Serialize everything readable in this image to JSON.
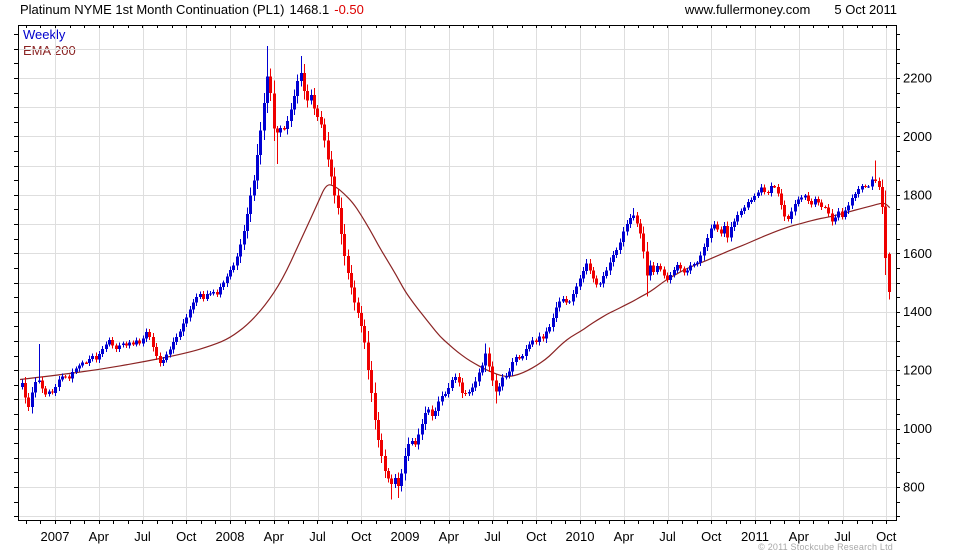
{
  "header": {
    "instrument": "Platinum NYME 1st Month Continuation (PL1)",
    "last": "1468.1",
    "change": "-0.50",
    "website": "www.fullermoney.com",
    "date": "5 Oct 2011"
  },
  "legend": {
    "weekly": "Weekly",
    "ema": "EMA 200"
  },
  "footer": {
    "copyright": "© 2011 Stockcube Research Ltd"
  },
  "colors": {
    "up": "#0000d2",
    "down": "#ee0000",
    "ema": "#8b2424",
    "grid": "#dedede",
    "frame": "#000000",
    "change_text": "#dd0000",
    "copyright_text": "#a9a9a9"
  },
  "chart_data": {
    "type": "candlestick",
    "title": "Platinum NYME 1st Month Continuation (PL1)",
    "frequency": "Weekly",
    "overlay": "EMA 200",
    "last_price": 1468.1,
    "change": -0.5,
    "as_of": "5 Oct 2011",
    "x_domain": [
      2006.79,
      2011.792
    ],
    "y_domain": [
      687,
      2381
    ],
    "y_grid_step": 100,
    "y_tick_step": 50,
    "y_labels": [
      800,
      1000,
      1200,
      1400,
      1600,
      1800,
      2000,
      2200
    ],
    "x_ticks": [
      [
        2007.0,
        "2007"
      ],
      [
        2007.25,
        "Apr"
      ],
      [
        2007.5,
        "Jul"
      ],
      [
        2007.75,
        "Oct"
      ],
      [
        2008.0,
        "2008"
      ],
      [
        2008.25,
        "Apr"
      ],
      [
        2008.5,
        "Jul"
      ],
      [
        2008.75,
        "Oct"
      ],
      [
        2009.0,
        "2009"
      ],
      [
        2009.25,
        "Apr"
      ],
      [
        2009.5,
        "Jul"
      ],
      [
        2009.75,
        "Oct"
      ],
      [
        2010.0,
        "2010"
      ],
      [
        2010.25,
        "Apr"
      ],
      [
        2010.5,
        "Jul"
      ],
      [
        2010.75,
        "Oct"
      ],
      [
        2011.0,
        "2011"
      ],
      [
        2011.25,
        "Apr"
      ],
      [
        2011.5,
        "Jul"
      ],
      [
        2011.75,
        "Oct"
      ]
    ],
    "price_anchors": [
      [
        2006.81,
        1160
      ],
      [
        2006.83,
        1105
      ],
      [
        2006.85,
        1070
      ],
      [
        2006.87,
        1125
      ],
      [
        2006.9,
        1180
      ],
      [
        2006.92,
        1140
      ],
      [
        2006.94,
        1110
      ],
      [
        2006.96,
        1130
      ],
      [
        2006.98,
        1115
      ],
      [
        2007.0,
        1140
      ],
      [
        2007.02,
        1165
      ],
      [
        2007.04,
        1180
      ],
      [
        2007.08,
        1170
      ],
      [
        2007.1,
        1195
      ],
      [
        2007.13,
        1215
      ],
      [
        2007.15,
        1230
      ],
      [
        2007.17,
        1220
      ],
      [
        2007.19,
        1240
      ],
      [
        2007.21,
        1255
      ],
      [
        2007.23,
        1235
      ],
      [
        2007.25,
        1250
      ],
      [
        2007.27,
        1270
      ],
      [
        2007.29,
        1290
      ],
      [
        2007.31,
        1305
      ],
      [
        2007.33,
        1285
      ],
      [
        2007.35,
        1270
      ],
      [
        2007.38,
        1290
      ],
      [
        2007.4,
        1280
      ],
      [
        2007.42,
        1295
      ],
      [
        2007.44,
        1285
      ],
      [
        2007.46,
        1300
      ],
      [
        2007.48,
        1290
      ],
      [
        2007.5,
        1310
      ],
      [
        2007.52,
        1330
      ],
      [
        2007.54,
        1310
      ],
      [
        2007.56,
        1280
      ],
      [
        2007.58,
        1245
      ],
      [
        2007.6,
        1225
      ],
      [
        2007.63,
        1250
      ],
      [
        2007.65,
        1270
      ],
      [
        2007.67,
        1290
      ],
      [
        2007.69,
        1310
      ],
      [
        2007.71,
        1330
      ],
      [
        2007.73,
        1355
      ],
      [
        2007.75,
        1380
      ],
      [
        2007.77,
        1410
      ],
      [
        2007.79,
        1435
      ],
      [
        2007.81,
        1455
      ],
      [
        2007.83,
        1465
      ],
      [
        2007.85,
        1445
      ],
      [
        2007.87,
        1460
      ],
      [
        2007.9,
        1475
      ],
      [
        2007.92,
        1460
      ],
      [
        2007.94,
        1480
      ],
      [
        2007.96,
        1500
      ],
      [
        2007.98,
        1520
      ],
      [
        2008.0,
        1545
      ],
      [
        2008.02,
        1560
      ],
      [
        2008.04,
        1590
      ],
      [
        2008.06,
        1640
      ],
      [
        2008.08,
        1690
      ],
      [
        2008.1,
        1750
      ],
      [
        2008.12,
        1810
      ],
      [
        2008.14,
        1870
      ],
      [
        2008.16,
        1960
      ],
      [
        2008.18,
        2060
      ],
      [
        2008.2,
        2160
      ],
      [
        2008.22,
        2230
      ],
      [
        2008.24,
        2080
      ],
      [
        2008.26,
        1990
      ],
      [
        2008.28,
        2050
      ],
      [
        2008.3,
        2020
      ],
      [
        2008.32,
        2040
      ],
      [
        2008.34,
        2080
      ],
      [
        2008.36,
        2130
      ],
      [
        2008.38,
        2170
      ],
      [
        2008.4,
        2220
      ],
      [
        2008.42,
        2170
      ],
      [
        2008.44,
        2120
      ],
      [
        2008.46,
        2140
      ],
      [
        2008.48,
        2090
      ],
      [
        2008.5,
        2060
      ],
      [
        2008.52,
        2030
      ],
      [
        2008.54,
        1990
      ],
      [
        2008.56,
        1920
      ],
      [
        2008.58,
        1850
      ],
      [
        2008.6,
        1790
      ],
      [
        2008.62,
        1730
      ],
      [
        2008.64,
        1650
      ],
      [
        2008.66,
        1570
      ],
      [
        2008.68,
        1510
      ],
      [
        2008.7,
        1450
      ],
      [
        2008.72,
        1420
      ],
      [
        2008.74,
        1370
      ],
      [
        2008.76,
        1320
      ],
      [
        2008.78,
        1240
      ],
      [
        2008.8,
        1150
      ],
      [
        2008.82,
        1060
      ],
      [
        2008.84,
        985
      ],
      [
        2008.86,
        920
      ],
      [
        2008.88,
        860
      ],
      [
        2008.9,
        835
      ],
      [
        2008.92,
        800
      ],
      [
        2008.94,
        835
      ],
      [
        2008.96,
        795
      ],
      [
        2008.98,
        850
      ],
      [
        2009.0,
        905
      ],
      [
        2009.02,
        945
      ],
      [
        2009.04,
        965
      ],
      [
        2009.06,
        950
      ],
      [
        2009.08,
        985
      ],
      [
        2009.1,
        1030
      ],
      [
        2009.12,
        1070
      ],
      [
        2009.14,
        1055
      ],
      [
        2009.16,
        1040
      ],
      [
        2009.18,
        1075
      ],
      [
        2009.2,
        1100
      ],
      [
        2009.23,
        1125
      ],
      [
        2009.25,
        1140
      ],
      [
        2009.27,
        1165
      ],
      [
        2009.29,
        1185
      ],
      [
        2009.31,
        1145
      ],
      [
        2009.33,
        1110
      ],
      [
        2009.35,
        1130
      ],
      [
        2009.37,
        1125
      ],
      [
        2009.4,
        1155
      ],
      [
        2009.42,
        1185
      ],
      [
        2009.44,
        1220
      ],
      [
        2009.46,
        1255
      ],
      [
        2009.48,
        1205
      ],
      [
        2009.5,
        1155
      ],
      [
        2009.52,
        1120
      ],
      [
        2009.54,
        1150
      ],
      [
        2009.56,
        1175
      ],
      [
        2009.58,
        1190
      ],
      [
        2009.6,
        1205
      ],
      [
        2009.62,
        1235
      ],
      [
        2009.64,
        1250
      ],
      [
        2009.66,
        1225
      ],
      [
        2009.68,
        1260
      ],
      [
        2009.7,
        1285
      ],
      [
        2009.73,
        1305
      ],
      [
        2009.75,
        1290
      ],
      [
        2009.77,
        1320
      ],
      [
        2009.79,
        1310
      ],
      [
        2009.81,
        1340
      ],
      [
        2009.83,
        1355
      ],
      [
        2009.85,
        1390
      ],
      [
        2009.87,
        1425
      ],
      [
        2009.9,
        1445
      ],
      [
        2009.92,
        1430
      ],
      [
        2009.94,
        1440
      ],
      [
        2009.96,
        1460
      ],
      [
        2009.98,
        1485
      ],
      [
        2010.0,
        1515
      ],
      [
        2010.02,
        1545
      ],
      [
        2010.04,
        1570
      ],
      [
        2010.06,
        1535
      ],
      [
        2010.08,
        1505
      ],
      [
        2010.1,
        1480
      ],
      [
        2010.12,
        1510
      ],
      [
        2010.14,
        1525
      ],
      [
        2010.16,
        1555
      ],
      [
        2010.18,
        1580
      ],
      [
        2010.2,
        1605
      ],
      [
        2010.22,
        1630
      ],
      [
        2010.24,
        1660
      ],
      [
        2010.26,
        1690
      ],
      [
        2010.28,
        1715
      ],
      [
        2010.3,
        1740
      ],
      [
        2010.32,
        1705
      ],
      [
        2010.34,
        1680
      ],
      [
        2010.36,
        1615
      ],
      [
        2010.38,
        1525
      ],
      [
        2010.4,
        1555
      ],
      [
        2010.42,
        1535
      ],
      [
        2010.44,
        1560
      ],
      [
        2010.46,
        1540
      ],
      [
        2010.48,
        1525
      ],
      [
        2010.5,
        1505
      ],
      [
        2010.52,
        1530
      ],
      [
        2010.54,
        1550
      ],
      [
        2010.56,
        1565
      ],
      [
        2010.58,
        1540
      ],
      [
        2010.6,
        1525
      ],
      [
        2010.62,
        1550
      ],
      [
        2010.64,
        1570
      ],
      [
        2010.66,
        1550
      ],
      [
        2010.68,
        1580
      ],
      [
        2010.7,
        1610
      ],
      [
        2010.72,
        1645
      ],
      [
        2010.74,
        1675
      ],
      [
        2010.76,
        1700
      ],
      [
        2010.78,
        1685
      ],
      [
        2010.8,
        1665
      ],
      [
        2010.82,
        1695
      ],
      [
        2010.84,
        1655
      ],
      [
        2010.86,
        1685
      ],
      [
        2010.88,
        1710
      ],
      [
        2010.9,
        1730
      ],
      [
        2010.92,
        1745
      ],
      [
        2010.94,
        1760
      ],
      [
        2010.96,
        1775
      ],
      [
        2010.98,
        1785
      ],
      [
        2011.0,
        1800
      ],
      [
        2011.02,
        1815
      ],
      [
        2011.04,
        1830
      ],
      [
        2011.06,
        1795
      ],
      [
        2011.08,
        1815
      ],
      [
        2011.1,
        1835
      ],
      [
        2011.12,
        1820
      ],
      [
        2011.14,
        1785
      ],
      [
        2011.16,
        1745
      ],
      [
        2011.18,
        1705
      ],
      [
        2011.2,
        1735
      ],
      [
        2011.22,
        1765
      ],
      [
        2011.24,
        1780
      ],
      [
        2011.26,
        1790
      ],
      [
        2011.28,
        1800
      ],
      [
        2011.3,
        1780
      ],
      [
        2011.32,
        1765
      ],
      [
        2011.34,
        1790
      ],
      [
        2011.36,
        1775
      ],
      [
        2011.38,
        1760
      ],
      [
        2011.4,
        1755
      ],
      [
        2011.42,
        1730
      ],
      [
        2011.44,
        1705
      ],
      [
        2011.46,
        1725
      ],
      [
        2011.48,
        1745
      ],
      [
        2011.5,
        1720
      ],
      [
        2011.52,
        1755
      ],
      [
        2011.54,
        1775
      ],
      [
        2011.56,
        1790
      ],
      [
        2011.58,
        1805
      ],
      [
        2011.6,
        1825
      ],
      [
        2011.62,
        1840
      ],
      [
        2011.64,
        1820
      ],
      [
        2011.66,
        1845
      ],
      [
        2011.68,
        1860
      ],
      [
        2011.7,
        1835
      ],
      [
        2011.72,
        1805
      ],
      [
        2011.74,
        1610
      ],
      [
        2011.76,
        1468
      ]
    ],
    "wick_overrides": [
      [
        2006.9,
        "h",
        1290
      ],
      [
        2008.22,
        "h",
        2310
      ],
      [
        2008.26,
        "l",
        1905
      ],
      [
        2008.4,
        "h",
        2275
      ],
      [
        2008.92,
        "l",
        758
      ],
      [
        2008.96,
        "l",
        762
      ],
      [
        2009.46,
        "h",
        1292
      ],
      [
        2009.52,
        "l",
        1086
      ],
      [
        2010.3,
        "h",
        1755
      ],
      [
        2010.38,
        "l",
        1452
      ],
      [
        2011.68,
        "h",
        1918
      ],
      [
        2011.74,
        "l",
        1580
      ],
      [
        2011.76,
        "l",
        1441
      ]
    ],
    "volatility_anchors": [
      [
        2006.81,
        18
      ],
      [
        2007.5,
        14
      ],
      [
        2008.0,
        20
      ],
      [
        2008.3,
        40
      ],
      [
        2008.7,
        35
      ],
      [
        2009.0,
        25
      ],
      [
        2009.5,
        22
      ],
      [
        2010.0,
        16
      ],
      [
        2010.5,
        16
      ],
      [
        2011.0,
        15
      ],
      [
        2011.5,
        16
      ],
      [
        2011.77,
        20
      ]
    ],
    "last_bar": {
      "open": 1598,
      "close": 1468.1,
      "high": 1602,
      "low": 1441
    },
    "ema_anchors": [
      [
        2006.8,
        1168
      ],
      [
        2007.0,
        1182
      ],
      [
        2007.25,
        1202
      ],
      [
        2007.5,
        1228
      ],
      [
        2007.75,
        1258
      ],
      [
        2007.9,
        1285
      ],
      [
        2008.0,
        1310
      ],
      [
        2008.1,
        1355
      ],
      [
        2008.2,
        1420
      ],
      [
        2008.3,
        1510
      ],
      [
        2008.4,
        1640
      ],
      [
        2008.5,
        1770
      ],
      [
        2008.55,
        1838
      ],
      [
        2008.6,
        1830
      ],
      [
        2008.65,
        1805
      ],
      [
        2008.7,
        1775
      ],
      [
        2008.75,
        1730
      ],
      [
        2008.8,
        1680
      ],
      [
        2008.85,
        1625
      ],
      [
        2008.9,
        1575
      ],
      [
        2008.95,
        1525
      ],
      [
        2009.0,
        1470
      ],
      [
        2009.05,
        1428
      ],
      [
        2009.1,
        1390
      ],
      [
        2009.15,
        1352
      ],
      [
        2009.2,
        1315
      ],
      [
        2009.25,
        1288
      ],
      [
        2009.3,
        1262
      ],
      [
        2009.35,
        1240
      ],
      [
        2009.4,
        1222
      ],
      [
        2009.45,
        1205
      ],
      [
        2009.5,
        1192
      ],
      [
        2009.55,
        1180
      ],
      [
        2009.6,
        1178
      ],
      [
        2009.65,
        1185
      ],
      [
        2009.7,
        1198
      ],
      [
        2009.75,
        1215
      ],
      [
        2009.8,
        1235
      ],
      [
        2009.85,
        1262
      ],
      [
        2009.9,
        1292
      ],
      [
        2009.95,
        1315
      ],
      [
        2010.0,
        1332
      ],
      [
        2010.05,
        1352
      ],
      [
        2010.1,
        1372
      ],
      [
        2010.15,
        1390
      ],
      [
        2010.2,
        1405
      ],
      [
        2010.25,
        1420
      ],
      [
        2010.3,
        1435
      ],
      [
        2010.35,
        1452
      ],
      [
        2010.4,
        1468
      ],
      [
        2010.45,
        1490
      ],
      [
        2010.5,
        1512
      ],
      [
        2010.55,
        1528
      ],
      [
        2010.6,
        1545
      ],
      [
        2010.65,
        1558
      ],
      [
        2010.7,
        1570
      ],
      [
        2010.75,
        1582
      ],
      [
        2010.8,
        1595
      ],
      [
        2010.85,
        1608
      ],
      [
        2010.9,
        1620
      ],
      [
        2010.95,
        1632
      ],
      [
        2011.0,
        1645
      ],
      [
        2011.05,
        1658
      ],
      [
        2011.1,
        1670
      ],
      [
        2011.15,
        1682
      ],
      [
        2011.2,
        1692
      ],
      [
        2011.25,
        1700
      ],
      [
        2011.3,
        1708
      ],
      [
        2011.35,
        1716
      ],
      [
        2011.4,
        1722
      ],
      [
        2011.45,
        1728
      ],
      [
        2011.5,
        1736
      ],
      [
        2011.55,
        1744
      ],
      [
        2011.6,
        1752
      ],
      [
        2011.65,
        1760
      ],
      [
        2011.7,
        1768
      ],
      [
        2011.73,
        1772
      ],
      [
        2011.75,
        1768
      ],
      [
        2011.77,
        1756
      ]
    ]
  }
}
